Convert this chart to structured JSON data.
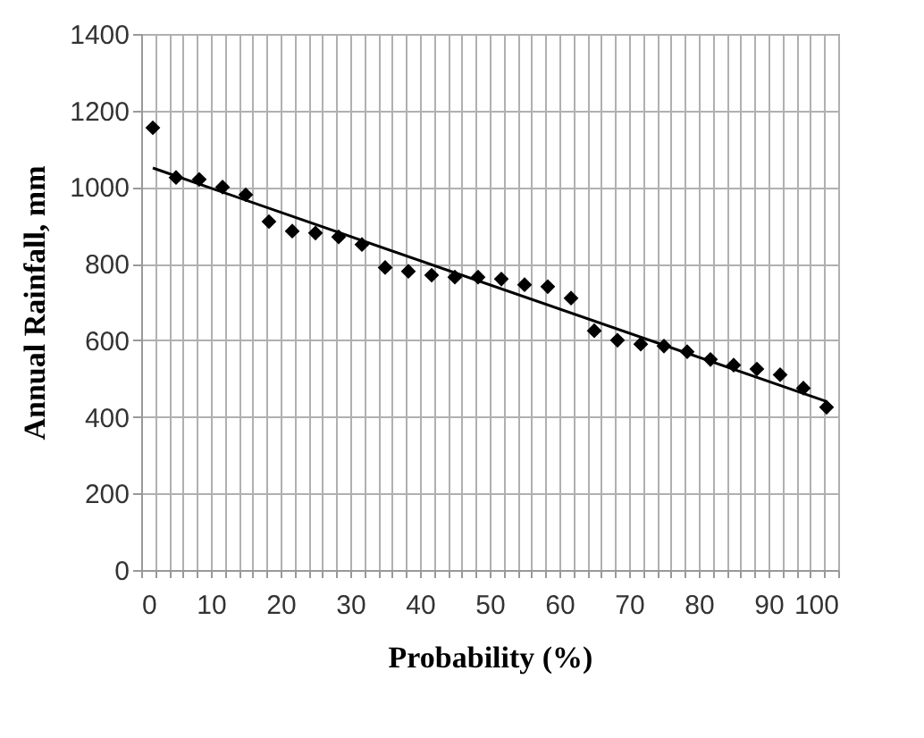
{
  "chart_data": {
    "type": "scatter",
    "xlabel": "Probability (%)",
    "ylabel": "Annual Rainfall, mm",
    "xlim": [
      0,
      100
    ],
    "ylim": [
      0,
      1400
    ],
    "xticks": [
      0,
      {
        "value": 2,
        "label": null
      },
      {
        "value": 4,
        "label": null
      },
      {
        "value": 6,
        "label": null
      },
      {
        "value": 8,
        "label": null
      },
      10,
      {
        "value": 12,
        "label": null
      },
      {
        "value": 14,
        "label": null
      },
      {
        "value": 16,
        "label": null
      },
      {
        "value": 18,
        "label": null
      },
      20,
      {
        "value": 22,
        "label": null
      },
      {
        "value": 24,
        "label": null
      },
      {
        "value": 26,
        "label": null
      },
      {
        "value": 28,
        "label": null
      },
      30,
      {
        "value": 32,
        "label": null
      },
      {
        "value": 34,
        "label": null
      },
      {
        "value": 36,
        "label": null
      },
      {
        "value": 38,
        "label": null
      },
      40,
      {
        "value": 42,
        "label": null
      },
      {
        "value": 44,
        "label": null
      },
      {
        "value": 46,
        "label": null
      },
      {
        "value": 48,
        "label": null
      },
      50,
      {
        "value": 52,
        "label": null
      },
      {
        "value": 54,
        "label": null
      },
      {
        "value": 56,
        "label": null
      },
      {
        "value": 58,
        "label": null
      },
      60,
      {
        "value": 62,
        "label": null
      },
      {
        "value": 64,
        "label": null
      },
      {
        "value": 66,
        "label": null
      },
      {
        "value": 68,
        "label": null
      },
      70,
      {
        "value": 72,
        "label": null
      },
      {
        "value": 74,
        "label": null
      },
      {
        "value": 76,
        "label": null
      },
      {
        "value": 78,
        "label": null
      },
      80,
      {
        "value": 82,
        "label": null
      },
      {
        "value": 84,
        "label": null
      },
      {
        "value": 86,
        "label": null
      },
      {
        "value": 88,
        "label": null
      },
      90,
      {
        "value": 92,
        "label": null
      },
      {
        "value": 94,
        "label": null
      },
      {
        "value": 96,
        "label": null
      },
      {
        "value": 98,
        "label": null
      },
      100
    ],
    "yticks": [
      0,
      200,
      400,
      600,
      800,
      1000,
      1200,
      1400
    ],
    "grid": true,
    "series": [
      {
        "color": "#000000",
        "marker": "diamond",
        "x": [
          1.67,
          5,
          8.33,
          11.67,
          15,
          18.33,
          21.67,
          25,
          28.33,
          31.67,
          35,
          38.33,
          41.67,
          45,
          48.33,
          51.67,
          55,
          58.33,
          61.67,
          65,
          68.33,
          71.67,
          75,
          78.33,
          81.67,
          85,
          88.33,
          91.67,
          95,
          98.33
        ],
        "values": [
          1155,
          1025,
          1020,
          1000,
          980,
          910,
          885,
          880,
          870,
          850,
          790,
          780,
          770,
          765,
          765,
          760,
          745,
          740,
          710,
          625,
          600,
          590,
          585,
          570,
          550,
          535,
          525,
          510,
          475,
          425
        ]
      },
      {
        "type": "line",
        "color": "#000000",
        "marker": "none",
        "line_style": "solid",
        "x": [
          1.67,
          98.33
        ],
        "values": [
          1050,
          440
        ]
      }
    ]
  }
}
